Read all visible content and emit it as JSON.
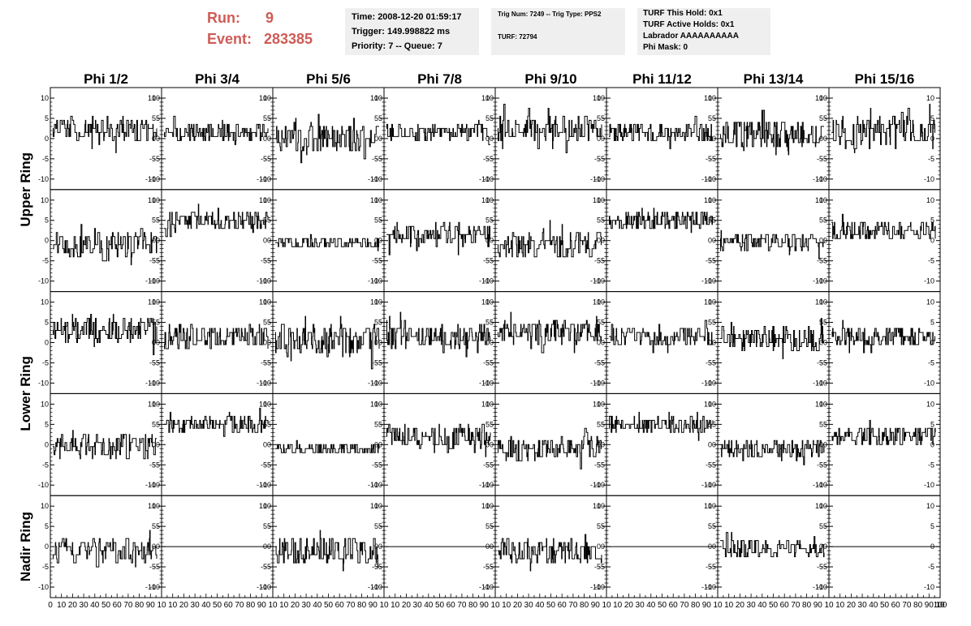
{
  "header": {
    "run_label": "Run:",
    "run_value": "9",
    "event_label": "Event:",
    "event_value": "283385",
    "time_line": "Time: 2008-12-20 01:59:17",
    "trigger_line": "Trigger: 149.998822 ms",
    "priority_line": "Priority: 7 -- Queue: 7",
    "trig_line": "Trig Num: 7249 -- Trig Type: PPS2",
    "turf_line": "TURF: 72794",
    "turf_hold_line": "TURF This Hold: 0x1",
    "turf_active_line": "TURF Active Holds: 0x1",
    "labrador_line": "Labrador AAAAAAAAAA",
    "phi_mask_line": "Phi Mask: 0"
  },
  "colors": {
    "accent_red": "#cf5b56",
    "info_bg": "#efefef",
    "trace": "#000000"
  },
  "chart_data": {
    "type": "line",
    "columns": [
      "Phi 1/2",
      "Phi 3/4",
      "Phi 5/6",
      "Phi 7/8",
      "Phi 9/10",
      "Phi 11/12",
      "Phi 13/14",
      "Phi 15/16"
    ],
    "rows": [
      "Upper Ring",
      "Upper Ring",
      "Lower Ring",
      "Lower Ring",
      "Nadir Ring"
    ],
    "row_labels": [
      "Upper Ring",
      "Lower Ring",
      "Nadir Ring"
    ],
    "xlim": [
      0,
      100
    ],
    "ylim": [
      -11,
      11
    ],
    "yticks": [
      10,
      5,
      0,
      -5,
      -10
    ],
    "xtick_labels_first": [
      "0",
      "10",
      "20",
      "30",
      "40",
      "50",
      "60",
      "70",
      "80",
      "90",
      "10"
    ],
    "xtick_labels_rest": [
      "10",
      "20",
      "30",
      "40",
      "50",
      "60",
      "70",
      "80",
      "90",
      "10"
    ],
    "xtick_label_last": "100",
    "panels": [
      {
        "center": 2.5,
        "amp": 2.8,
        "seed": 11,
        "flat": false
      },
      {
        "center": 1.5,
        "amp": 2.0,
        "seed": 12,
        "flat": false
      },
      {
        "center": 0.0,
        "amp": 3.5,
        "seed": 13,
        "flat": false
      },
      {
        "center": 1.5,
        "amp": 2.0,
        "seed": 14,
        "flat": false
      },
      {
        "center": 2.5,
        "amp": 3.0,
        "seed": 15,
        "flat": false
      },
      {
        "center": 1.5,
        "amp": 2.5,
        "seed": 16,
        "flat": false
      },
      {
        "center": 1.0,
        "amp": 3.5,
        "seed": 17,
        "flat": false
      },
      {
        "center": 1.5,
        "amp": 4.0,
        "seed": 18,
        "flat": false
      },
      {
        "center": -1.0,
        "amp": 2.8,
        "seed": 21,
        "flat": false
      },
      {
        "center": 5.0,
        "amp": 2.2,
        "seed": 22,
        "flat": false
      },
      {
        "center": -0.5,
        "amp": 1.5,
        "seed": 23,
        "flat": false
      },
      {
        "center": 1.5,
        "amp": 2.8,
        "seed": 24,
        "flat": false
      },
      {
        "center": -1.0,
        "amp": 3.2,
        "seed": 25,
        "flat": false
      },
      {
        "center": 5.0,
        "amp": 2.0,
        "seed": 26,
        "flat": false
      },
      {
        "center": -0.5,
        "amp": 2.0,
        "seed": 27,
        "flat": false
      },
      {
        "center": 2.5,
        "amp": 2.5,
        "seed": 28,
        "flat": false
      },
      {
        "center": 3.0,
        "amp": 3.0,
        "seed": 31,
        "flat": false
      },
      {
        "center": 1.5,
        "amp": 2.8,
        "seed": 32,
        "flat": false
      },
      {
        "center": 0.5,
        "amp": 3.8,
        "seed": 33,
        "flat": false
      },
      {
        "center": 1.5,
        "amp": 2.8,
        "seed": 34,
        "flat": false
      },
      {
        "center": 2.5,
        "amp": 2.8,
        "seed": 35,
        "flat": false
      },
      {
        "center": 1.5,
        "amp": 2.5,
        "seed": 36,
        "flat": false
      },
      {
        "center": 1.0,
        "amp": 3.0,
        "seed": 37,
        "flat": false
      },
      {
        "center": 1.5,
        "amp": 2.5,
        "seed": 38,
        "flat": false
      },
      {
        "center": -0.5,
        "amp": 3.2,
        "seed": 41,
        "flat": false
      },
      {
        "center": 5.0,
        "amp": 2.2,
        "seed": 42,
        "flat": false
      },
      {
        "center": -1.0,
        "amp": 1.5,
        "seed": 43,
        "flat": false
      },
      {
        "center": 2.0,
        "amp": 2.8,
        "seed": 44,
        "flat": false
      },
      {
        "center": -1.0,
        "amp": 2.8,
        "seed": 45,
        "flat": false
      },
      {
        "center": 5.0,
        "amp": 1.8,
        "seed": 46,
        "flat": false
      },
      {
        "center": -1.0,
        "amp": 2.0,
        "seed": 47,
        "flat": false
      },
      {
        "center": 2.0,
        "amp": 2.5,
        "seed": 48,
        "flat": false
      },
      {
        "center": -1.0,
        "amp": 2.8,
        "seed": 51,
        "flat": false
      },
      {
        "center": 0.0,
        "amp": 0,
        "seed": 52,
        "flat": true
      },
      {
        "center": -1.0,
        "amp": 3.5,
        "seed": 53,
        "flat": false
      },
      {
        "center": 0.0,
        "amp": 0,
        "seed": 54,
        "flat": true
      },
      {
        "center": -1.0,
        "amp": 2.8,
        "seed": 55,
        "flat": false
      },
      {
        "center": 0.0,
        "amp": 0,
        "seed": 56,
        "flat": true
      },
      {
        "center": -0.5,
        "amp": 2.5,
        "seed": 57,
        "flat": false
      },
      {
        "center": 0.0,
        "amp": 0,
        "seed": 58,
        "flat": true
      }
    ]
  }
}
